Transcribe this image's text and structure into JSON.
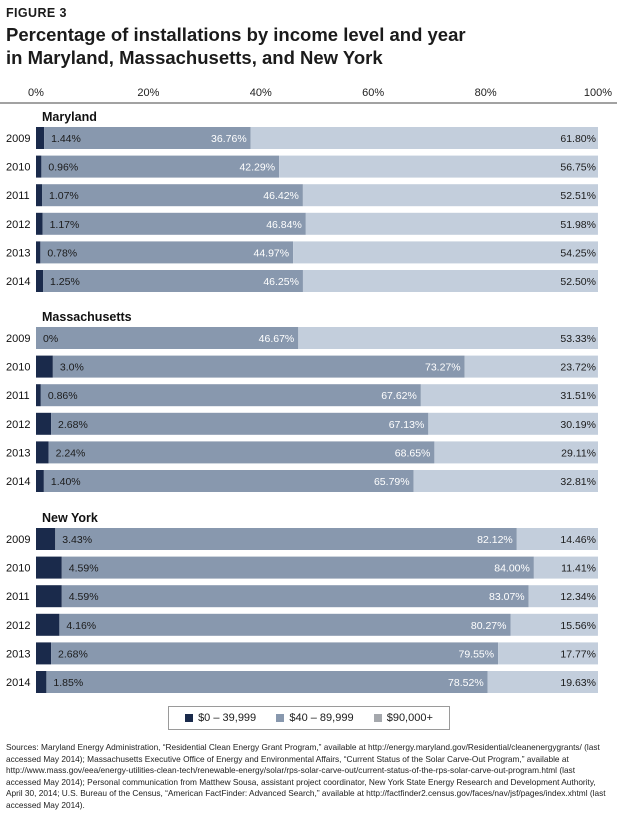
{
  "figure_label": "FIGURE 3",
  "title_line1": "Percentage of installations by income level and year",
  "title_line2": "in Maryland, Massachusetts, and New York",
  "legend": [
    {
      "label": "$0 – 39,999",
      "color": "#1a2a4b"
    },
    {
      "label": "$40 – 89,999",
      "color": "#8898ae"
    },
    {
      "label": "$90,000+",
      "color": "#a5a8ad"
    }
  ],
  "sources": "Sources: Maryland Energy Administration, “Residential Clean Energy Grant Program,” available at http://energy.maryland.gov/Residential/cleanenergygrants/ (last accessed May 2014); Massachusetts Executive Office of Energy and Environmental Affairs, “Current Status of the Solar Carve-Out Program,” available at http://www.mass.gov/eea/energy-utilities-clean-tech/renewable-energy/solar/rps-solar-carve-out/current-status-of-the-rps-solar-carve-out-program.html (last accessed May 2014); Personal communication from Matthew Sousa, assistant project coordinator, New York State Energy Research and Development Authority, April 30, 2014; U.S. Bureau of the Census, “American FactFinder: Advanced Search,” available at http://factfinder2.census.gov/faces/nav/jsf/pages/index.xhtml (last accessed May 2014).",
  "chart_data": {
    "type": "bar",
    "orientation": "horizontal-stacked-100",
    "xlim": [
      0,
      100
    ],
    "x_ticks": [
      "0%",
      "20%",
      "40%",
      "60%",
      "80%",
      "100%"
    ],
    "series_names": [
      "$0 – 39,999",
      "$40 – 89,999",
      "$90,000+"
    ],
    "colors": [
      "#1a2a4b",
      "#8898ae",
      "#c3cedc"
    ],
    "groups": [
      {
        "name": "Maryland",
        "rows": [
          {
            "year": "2009",
            "values": [
              1.44,
              36.76,
              61.8
            ],
            "labels": [
              "1.44%",
              "36.76%",
              "61.80%"
            ]
          },
          {
            "year": "2010",
            "values": [
              0.96,
              42.29,
              56.75
            ],
            "labels": [
              "0.96%",
              "42.29%",
              "56.75%"
            ]
          },
          {
            "year": "2011",
            "values": [
              1.07,
              46.42,
              52.51
            ],
            "labels": [
              "1.07%",
              "46.42%",
              "52.51%"
            ]
          },
          {
            "year": "2012",
            "values": [
              1.17,
              46.84,
              51.98
            ],
            "labels": [
              "1.17%",
              "46.84%",
              "51.98%"
            ]
          },
          {
            "year": "2013",
            "values": [
              0.78,
              44.97,
              54.25
            ],
            "labels": [
              "0.78%",
              "44.97%",
              "54.25%"
            ]
          },
          {
            "year": "2014",
            "values": [
              1.25,
              46.25,
              52.5
            ],
            "labels": [
              "1.25%",
              "46.25%",
              "52.50%"
            ]
          }
        ]
      },
      {
        "name": "Massachusetts",
        "rows": [
          {
            "year": "2009",
            "values": [
              0,
              46.67,
              53.33
            ],
            "labels": [
              "0%",
              "46.67%",
              "53.33%"
            ]
          },
          {
            "year": "2010",
            "values": [
              3.0,
              73.27,
              23.72
            ],
            "labels": [
              "3.0%",
              "73.27%",
              "23.72%"
            ]
          },
          {
            "year": "2011",
            "values": [
              0.86,
              67.62,
              31.51
            ],
            "labels": [
              "0.86%",
              "67.62%",
              "31.51%"
            ]
          },
          {
            "year": "2012",
            "values": [
              2.68,
              67.13,
              30.19
            ],
            "labels": [
              "2.68%",
              "67.13%",
              "30.19%"
            ]
          },
          {
            "year": "2013",
            "values": [
              2.24,
              68.65,
              29.11
            ],
            "labels": [
              "2.24%",
              "68.65%",
              "29.11%"
            ]
          },
          {
            "year": "2014",
            "values": [
              1.4,
              65.79,
              32.81
            ],
            "labels": [
              "1.40%",
              "65.79%",
              "32.81%"
            ]
          }
        ]
      },
      {
        "name": "New York",
        "rows": [
          {
            "year": "2009",
            "values": [
              3.43,
              82.12,
              14.46
            ],
            "labels": [
              "3.43%",
              "82.12%",
              "14.46%"
            ]
          },
          {
            "year": "2010",
            "values": [
              4.59,
              84.0,
              11.41
            ],
            "labels": [
              "4.59%",
              "84.00%",
              "11.41%"
            ]
          },
          {
            "year": "2011",
            "values": [
              4.59,
              83.07,
              12.34
            ],
            "labels": [
              "4.59%",
              "83.07%",
              "12.34%"
            ]
          },
          {
            "year": "2012",
            "values": [
              4.16,
              80.27,
              15.56
            ],
            "labels": [
              "4.16%",
              "80.27%",
              "15.56%"
            ]
          },
          {
            "year": "2013",
            "values": [
              2.68,
              79.55,
              17.77
            ],
            "labels": [
              "2.68%",
              "79.55%",
              "17.77%"
            ]
          },
          {
            "year": "2014",
            "values": [
              1.85,
              78.52,
              19.63
            ],
            "labels": [
              "1.85%",
              "78.52%",
              "19.63%"
            ]
          }
        ]
      }
    ]
  }
}
